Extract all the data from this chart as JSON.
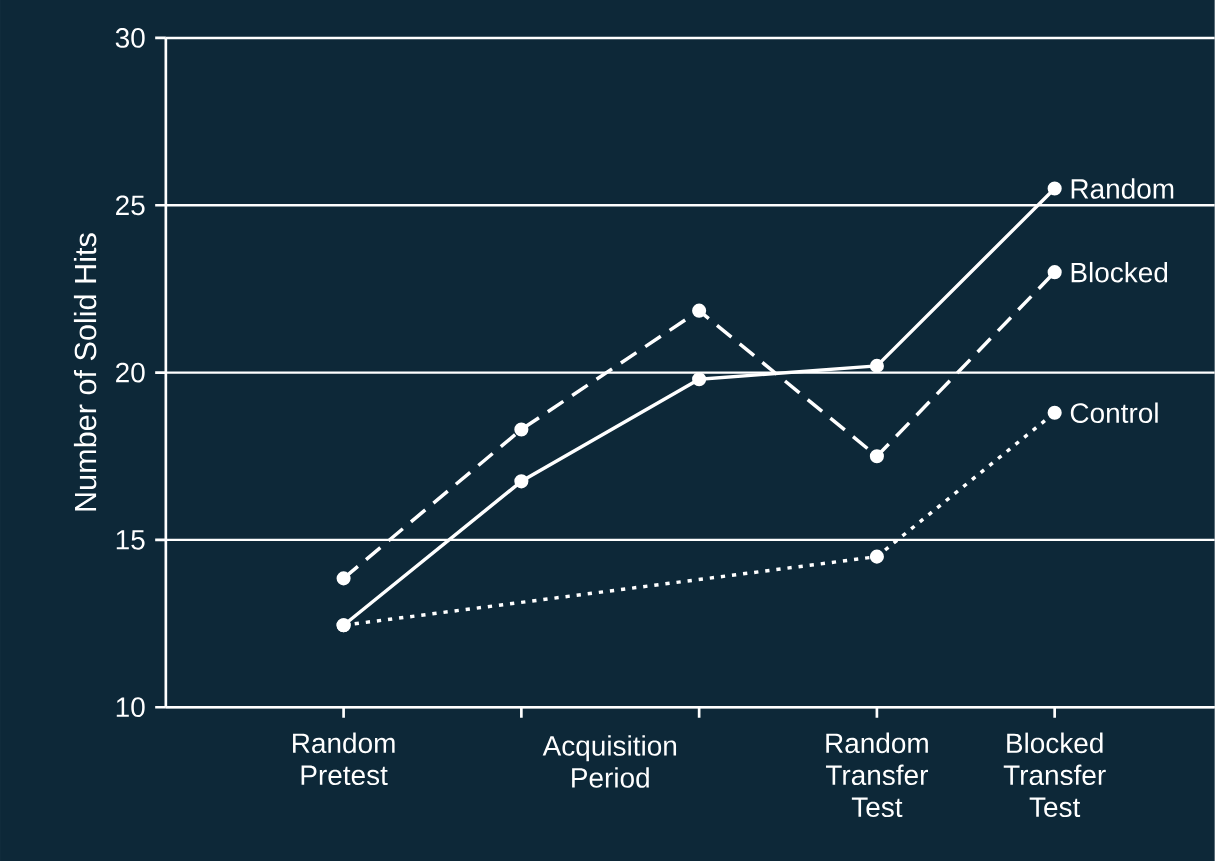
{
  "chart_data": {
    "type": "line",
    "ylabel": "Number of Solid Hits",
    "categories": [
      "Random Pretest",
      null,
      null,
      "Random Transfer Test",
      "Blocked Transfer Test"
    ],
    "annotations": [
      "Acquisition Period"
    ],
    "ylim": [
      10,
      30
    ],
    "yticks": [
      10,
      15,
      20,
      25,
      30
    ],
    "grid": "y",
    "marker": "circle",
    "series": [
      {
        "name": "Random",
        "color": "#ffffff",
        "line_style": "solid",
        "values": [
          12.45,
          16.75,
          19.8,
          20.2,
          25.5
        ]
      },
      {
        "name": "Blocked",
        "color": "#ffffff",
        "line_style": "dashed",
        "values": [
          13.85,
          18.3,
          21.85,
          17.5,
          23.0
        ]
      },
      {
        "name": "Control",
        "color": "#ffffff",
        "line_style": "dotted",
        "values": [
          12.45,
          null,
          null,
          14.5,
          18.8
        ]
      }
    ]
  }
}
